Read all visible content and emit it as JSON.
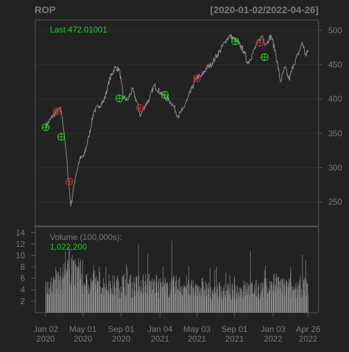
{
  "chart_data": {
    "type": "line",
    "title": "ROP",
    "date_range": "[2020-01-02/2022-04-26]",
    "background": "#222222",
    "last_label": "Last 472.01001",
    "price": {
      "ylim": [
        215,
        515
      ],
      "yticks": [
        250,
        300,
        350,
        400,
        450,
        500
      ],
      "tick_labels": [
        "250",
        "300",
        "350",
        "400",
        "450",
        "500"
      ],
      "series": [
        {
          "color": "#8f8f8f",
          "points": [
            [
              "2020-01-02",
              360
            ],
            [
              "2020-01-21",
              373
            ],
            [
              "2020-02-07",
              382
            ],
            [
              "2020-02-20",
              385
            ],
            [
              "2020-03-02",
              350
            ],
            [
              "2020-03-12",
              300
            ],
            [
              "2020-03-23",
              244
            ],
            [
              "2020-04-06",
              285
            ],
            [
              "2020-04-20",
              312
            ],
            [
              "2020-05-04",
              317
            ],
            [
              "2020-05-20",
              345
            ],
            [
              "2020-06-05",
              382
            ],
            [
              "2020-06-22",
              390
            ],
            [
              "2020-07-08",
              398
            ],
            [
              "2020-07-27",
              430
            ],
            [
              "2020-08-12",
              446
            ],
            [
              "2020-08-26",
              443
            ],
            [
              "2020-09-08",
              403
            ],
            [
              "2020-09-22",
              398
            ],
            [
              "2020-10-07",
              414
            ],
            [
              "2020-10-22",
              395
            ],
            [
              "2020-11-02",
              375
            ],
            [
              "2020-11-16",
              390
            ],
            [
              "2020-12-01",
              400
            ],
            [
              "2020-12-16",
              420
            ],
            [
              "2021-01-05",
              410
            ],
            [
              "2021-01-20",
              403
            ],
            [
              "2021-02-03",
              398
            ],
            [
              "2021-02-17",
              390
            ],
            [
              "2021-03-03",
              375
            ],
            [
              "2021-03-17",
              383
            ],
            [
              "2021-04-01",
              398
            ],
            [
              "2021-04-16",
              415
            ],
            [
              "2021-05-03",
              432
            ],
            [
              "2021-05-18",
              433
            ],
            [
              "2021-06-02",
              445
            ],
            [
              "2021-06-17",
              450
            ],
            [
              "2021-07-01",
              460
            ],
            [
              "2021-07-16",
              470
            ],
            [
              "2021-08-02",
              484
            ],
            [
              "2021-08-16",
              492
            ],
            [
              "2021-08-31",
              487
            ],
            [
              "2021-09-15",
              480
            ],
            [
              "2021-10-01",
              470
            ],
            [
              "2021-10-14",
              452
            ],
            [
              "2021-10-29",
              466
            ],
            [
              "2021-11-12",
              480
            ],
            [
              "2021-11-29",
              492
            ],
            [
              "2021-12-10",
              480
            ],
            [
              "2021-12-28",
              492
            ],
            [
              "2022-01-11",
              468
            ],
            [
              "2022-01-27",
              425
            ],
            [
              "2022-02-10",
              446
            ],
            [
              "2022-02-24",
              428
            ],
            [
              "2022-03-10",
              450
            ],
            [
              "2022-03-25",
              465
            ],
            [
              "2022-04-07",
              483
            ],
            [
              "2022-04-19",
              462
            ],
            [
              "2022-04-26",
              472
            ]
          ]
        }
      ],
      "markers": [
        {
          "date": "2020-01-02",
          "value": 359,
          "signal": "buy",
          "color": "#19d119"
        },
        {
          "date": "2020-02-07",
          "value": 382,
          "signal": "sell",
          "color": "#c0312c"
        },
        {
          "date": "2020-02-21",
          "value": 345,
          "signal": "buy",
          "color": "#19d119"
        },
        {
          "date": "2020-03-18",
          "value": 280,
          "signal": "sell",
          "color": "#c0312c"
        },
        {
          "date": "2020-08-26",
          "value": 401,
          "signal": "buy",
          "color": "#19d119"
        },
        {
          "date": "2020-11-01",
          "value": 387,
          "signal": "sell",
          "color": "#c0312c"
        },
        {
          "date": "2021-01-20",
          "value": 406,
          "signal": "buy",
          "color": "#19d119"
        },
        {
          "date": "2021-05-03",
          "value": 430,
          "signal": "sell",
          "color": "#c0312c"
        },
        {
          "date": "2021-09-03",
          "value": 484,
          "signal": "buy",
          "color": "#19d119"
        },
        {
          "date": "2021-11-22",
          "value": 482,
          "signal": "sell",
          "color": "#c0312c"
        },
        {
          "date": "2021-12-07",
          "value": 461,
          "signal": "buy",
          "color": "#19d119"
        }
      ]
    },
    "volume": {
      "label": "Volume (100,000s):",
      "last_value": "1,022,200",
      "unit": "100,000s",
      "ylim": [
        0,
        15
      ],
      "yticks": [
        2,
        4,
        6,
        8,
        10,
        12,
        14
      ],
      "tick_labels": [
        "2",
        "4",
        "6",
        "8",
        "10",
        "12",
        "14"
      ],
      "color": "#8e8e8e",
      "monthly": [
        {
          "month": "2020-01",
          "avg": 4.8,
          "peak": 7.7
        },
        {
          "month": "2020-02",
          "avg": 5.5,
          "peak": 10.9
        },
        {
          "month": "2020-03",
          "avg": 8.2,
          "peak": 12.3
        },
        {
          "month": "2020-04",
          "avg": 6.5,
          "peak": 11.5
        },
        {
          "month": "2020-05",
          "avg": 5.0,
          "peak": 8.0
        },
        {
          "month": "2020-06",
          "avg": 5.2,
          "peak": 9.5
        },
        {
          "month": "2020-07",
          "avg": 4.8,
          "peak": 8.5
        },
        {
          "month": "2020-08",
          "avg": 4.6,
          "peak": 9.0
        },
        {
          "month": "2020-09",
          "avg": 5.0,
          "peak": 8.8
        },
        {
          "month": "2020-10",
          "avg": 4.6,
          "peak": 13.5
        },
        {
          "month": "2020-11",
          "avg": 5.2,
          "peak": 12.8
        },
        {
          "month": "2020-12",
          "avg": 4.6,
          "peak": 9.5
        },
        {
          "month": "2021-01",
          "avg": 4.4,
          "peak": 8.5
        },
        {
          "month": "2021-02",
          "avg": 4.5,
          "peak": 12.8
        },
        {
          "month": "2021-03",
          "avg": 4.6,
          "peak": 13.0
        },
        {
          "month": "2021-04",
          "avg": 4.0,
          "peak": 9.0
        },
        {
          "month": "2021-05",
          "avg": 4.3,
          "peak": 9.5
        },
        {
          "month": "2021-06",
          "avg": 3.8,
          "peak": 8.5
        },
        {
          "month": "2021-07",
          "avg": 3.9,
          "peak": 8.0
        },
        {
          "month": "2021-08",
          "avg": 3.6,
          "peak": 7.0
        },
        {
          "month": "2021-09",
          "avg": 3.8,
          "peak": 8.5
        },
        {
          "month": "2021-10",
          "avg": 4.0,
          "peak": 11.0
        },
        {
          "month": "2021-11",
          "avg": 4.0,
          "peak": 8.5
        },
        {
          "month": "2021-12",
          "avg": 4.3,
          "peak": 9.0
        },
        {
          "month": "2022-01",
          "avg": 4.8,
          "peak": 10.0
        },
        {
          "month": "2022-02",
          "avg": 4.3,
          "peak": 8.0
        },
        {
          "month": "2022-03",
          "avg": 4.0,
          "peak": 8.5
        },
        {
          "month": "2022-04",
          "avg": 4.5,
          "peak": 10.2
        }
      ]
    },
    "x_axis": {
      "xlim": [
        "2020-01-02",
        "2022-04-26"
      ],
      "ticks": [
        {
          "date": "2020-01-02",
          "label": [
            "Jan 02",
            "2020"
          ]
        },
        {
          "date": "2020-05-01",
          "label": [
            "May 01",
            "2020"
          ]
        },
        {
          "date": "2020-09-01",
          "label": [
            "Sep 01",
            "2020"
          ]
        },
        {
          "date": "2021-01-04",
          "label": [
            "Jan 04",
            "2021"
          ]
        },
        {
          "date": "2021-05-03",
          "label": [
            "May 03",
            "2021"
          ]
        },
        {
          "date": "2021-09-01",
          "label": [
            "Sep 01",
            "2021"
          ]
        },
        {
          "date": "2022-01-03",
          "label": [
            "Jan 03",
            "2022"
          ]
        },
        {
          "date": "2022-04-26",
          "label": [
            "Apr 26",
            "2022"
          ]
        }
      ]
    },
    "grid": true,
    "colors": {
      "text": "#7a7a7a",
      "axis": "#5a5a5a",
      "accent": "#19d119",
      "sell": "#c0312c"
    }
  }
}
